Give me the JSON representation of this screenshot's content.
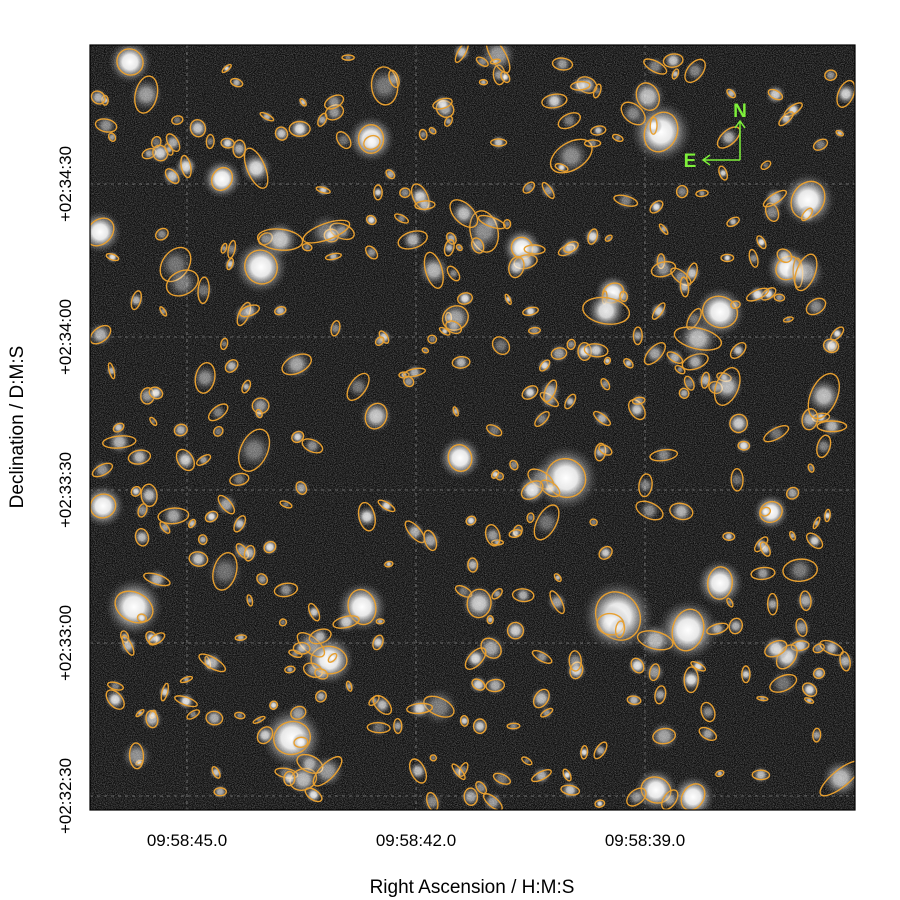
{
  "plot": {
    "xlabel": "Right Ascension / H:M:S",
    "ylabel": "Declination / D:M:S",
    "x_ticks": [
      "09:58:45.0",
      "09:58:42.0",
      "09:58:39.0"
    ],
    "y_ticks": [
      "+02:34:30",
      "+02:34:00",
      "+02:33:30",
      "+02:33:00",
      "+02:32:30"
    ],
    "grid": true,
    "ellipse_color": "#e8a030",
    "background_color": "#0c0c0c"
  },
  "compass": {
    "north_label": "N",
    "east_label": "E",
    "color": "#7ef03a"
  }
}
